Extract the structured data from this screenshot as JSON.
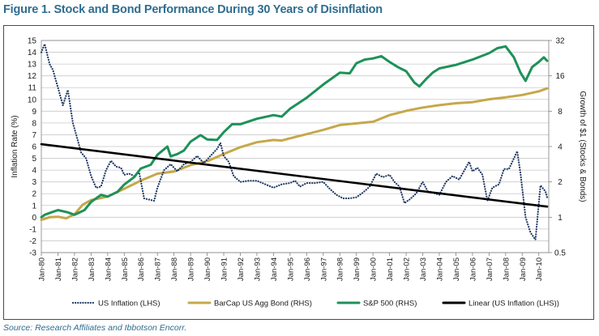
{
  "figure": {
    "title": "Figure 1. Stock and Bond Performance During 30 Years of Disinflation",
    "source": "Source: Research Affiliates and Ibbotson Encorr."
  },
  "chart_data": {
    "type": "line",
    "title": "Figure 1. Stock and Bond Performance During 30 Years of Disinflation",
    "ylabel": "Inflation Rate (%)",
    "y2label": "Growth of $1 (Stocks & Bonds)",
    "ylim": [
      -3,
      15
    ],
    "y2lim": [
      0.5,
      32
    ],
    "y2scale": "log2",
    "yticks": [
      "15",
      "14",
      "13",
      "12",
      "11",
      "10",
      "9",
      "8",
      "7",
      "6",
      "5",
      "4",
      "3",
      "2",
      "1",
      "0",
      "-1",
      "-2",
      "-3"
    ],
    "y2ticks": [
      "32",
      "16",
      "8",
      "4",
      "2",
      "1",
      "0.5"
    ],
    "xticks": [
      "Jan-80",
      "Jan-81",
      "Jan-82",
      "Jan-83",
      "Jan-84",
      "Jan-85",
      "Jan-86",
      "Jan-87",
      "Jan-88",
      "Jan-89",
      "Jan-90",
      "Jan-91",
      "Jan-92",
      "Jan-93",
      "Jan-94",
      "Jan-95",
      "Jan-96",
      "Jan-97",
      "Jan-98",
      "Jan-99",
      "Jan-00",
      "Jan-01",
      "Jan-02",
      "Jan-03",
      "Jan-04",
      "Jan-05",
      "Jan-06",
      "Jan-07",
      "Jan-08",
      "Jan-09",
      "Jan-10"
    ],
    "grid": true,
    "legend_position": "bottom",
    "series": [
      {
        "name": "US Inflation (LHS)",
        "axis": "left",
        "color": "#1f3864",
        "style": "dotted",
        "x": [
          1980.0,
          1980.2,
          1980.5,
          1980.7,
          1981.0,
          1981.3,
          1981.6,
          1981.9,
          1982.1,
          1982.4,
          1982.7,
          1983.0,
          1983.3,
          1983.6,
          1983.9,
          1984.2,
          1984.5,
          1984.8,
          1985.0,
          1985.3,
          1985.6,
          1985.9,
          1986.2,
          1986.5,
          1986.8,
          1987.0,
          1987.4,
          1987.8,
          1988.2,
          1988.6,
          1989.0,
          1989.4,
          1989.8,
          1990.2,
          1990.6,
          1990.8,
          1991.0,
          1991.3,
          1991.6,
          1992.0,
          1992.5,
          1993.0,
          1993.5,
          1994.0,
          1994.5,
          1995.0,
          1995.3,
          1995.6,
          1996.0,
          1996.5,
          1997.0,
          1997.4,
          1997.8,
          1998.2,
          1998.6,
          1999.0,
          1999.4,
          1999.8,
          2000.2,
          2000.6,
          2001.0,
          2001.3,
          2001.6,
          2001.9,
          2002.2,
          2002.6,
          2003.0,
          2003.3,
          2003.6,
          2004.0,
          2004.4,
          2004.8,
          2005.2,
          2005.6,
          2005.8,
          2006.0,
          2006.3,
          2006.6,
          2006.9,
          2007.2,
          2007.6,
          2007.9,
          2008.2,
          2008.5,
          2008.7,
          2008.9,
          2009.2,
          2009.5,
          2009.8,
          2010.1,
          2010.4,
          2010.5
        ],
        "y": [
          14.0,
          14.7,
          13.0,
          12.5,
          11.0,
          9.5,
          10.8,
          8.0,
          7.0,
          5.5,
          5.0,
          3.5,
          2.5,
          2.6,
          4.0,
          4.8,
          4.3,
          4.2,
          3.6,
          3.7,
          3.5,
          3.8,
          1.6,
          1.5,
          1.4,
          2.5,
          4.0,
          4.5,
          3.9,
          4.5,
          4.7,
          5.2,
          4.6,
          5.2,
          5.8,
          6.3,
          5.2,
          4.7,
          3.5,
          3.0,
          3.1,
          3.1,
          2.8,
          2.5,
          2.8,
          2.9,
          3.1,
          2.6,
          2.9,
          2.9,
          3.0,
          2.4,
          1.9,
          1.6,
          1.6,
          1.7,
          2.1,
          2.6,
          3.7,
          3.4,
          3.6,
          3.0,
          2.6,
          1.2,
          1.5,
          2.0,
          3.0,
          2.2,
          2.1,
          1.9,
          3.0,
          3.5,
          3.2,
          4.2,
          4.7,
          3.9,
          4.2,
          3.6,
          1.4,
          2.5,
          2.8,
          4.1,
          4.1,
          5.0,
          5.6,
          3.7,
          0.0,
          -1.3,
          -1.9,
          2.7,
          2.2,
          1.7
        ]
      },
      {
        "name": "BarCap US Agg Bond (RHS)",
        "axis": "right",
        "color": "#c5a84a",
        "style": "solid",
        "x": [
          1980.0,
          1980.5,
          1981.0,
          1981.5,
          1982.0,
          1982.5,
          1983.0,
          1984.0,
          1984.5,
          1985.0,
          1986.0,
          1987.0,
          1988.0,
          1989.0,
          1990.0,
          1991.0,
          1992.0,
          1993.0,
          1994.0,
          1994.5,
          1995.0,
          1996.0,
          1997.0,
          1998.0,
          1999.0,
          2000.0,
          2001.0,
          2002.0,
          2003.0,
          2004.0,
          2005.0,
          2006.0,
          2007.0,
          2008.0,
          2009.0,
          2010.0,
          2010.5
        ],
        "y": [
          0.95,
          1.0,
          1.01,
          0.98,
          1.06,
          1.28,
          1.4,
          1.5,
          1.62,
          1.75,
          2.05,
          2.35,
          2.45,
          2.78,
          3.0,
          3.45,
          3.95,
          4.35,
          4.55,
          4.5,
          4.7,
          5.1,
          5.55,
          6.1,
          6.3,
          6.5,
          7.4,
          8.05,
          8.6,
          9.0,
          9.35,
          9.55,
          10.1,
          10.5,
          11.0,
          11.8,
          12.5
        ]
      },
      {
        "name": "S&P 500 (RHS)",
        "axis": "right",
        "color": "#1e9158",
        "style": "solid",
        "x": [
          1980.0,
          1980.2,
          1980.6,
          1981.0,
          1981.6,
          1982.0,
          1982.6,
          1983.0,
          1983.6,
          1984.0,
          1984.6,
          1985.0,
          1985.6,
          1986.0,
          1986.6,
          1987.0,
          1987.6,
          1987.8,
          1988.2,
          1988.6,
          1989.0,
          1989.6,
          1990.0,
          1990.6,
          1991.0,
          1991.5,
          1992.0,
          1993.0,
          1994.0,
          1994.5,
          1995.0,
          1996.0,
          1997.0,
          1998.0,
          1998.6,
          1999.0,
          1999.5,
          2000.0,
          2000.5,
          2001.0,
          2001.5,
          2002.0,
          2002.5,
          2002.8,
          2003.2,
          2003.6,
          2004.0,
          2005.0,
          2006.0,
          2007.0,
          2007.5,
          2008.0,
          2008.5,
          2008.9,
          2009.2,
          2009.6,
          2010.0,
          2010.3,
          2010.5
        ],
        "y": [
          1.0,
          1.05,
          1.1,
          1.15,
          1.1,
          1.05,
          1.15,
          1.35,
          1.55,
          1.5,
          1.65,
          1.9,
          2.2,
          2.6,
          2.8,
          3.4,
          4.0,
          3.3,
          3.45,
          3.7,
          4.4,
          5.0,
          4.6,
          4.55,
          5.3,
          6.2,
          6.2,
          6.9,
          7.4,
          7.2,
          8.4,
          10.4,
          13.5,
          17.0,
          16.8,
          20.5,
          22.0,
          22.5,
          23.5,
          21.0,
          19.0,
          17.5,
          14.0,
          13.0,
          15.0,
          17.0,
          18.5,
          19.8,
          22.0,
          25.0,
          27.5,
          28.5,
          23.0,
          17.0,
          14.5,
          19.0,
          21.0,
          23.0,
          21.5
        ]
      },
      {
        "name": "Linear (US Inflation (LHS))",
        "axis": "left",
        "color": "#000000",
        "style": "solid",
        "x": [
          1980.0,
          2010.5
        ],
        "y": [
          6.2,
          0.9
        ]
      }
    ]
  }
}
